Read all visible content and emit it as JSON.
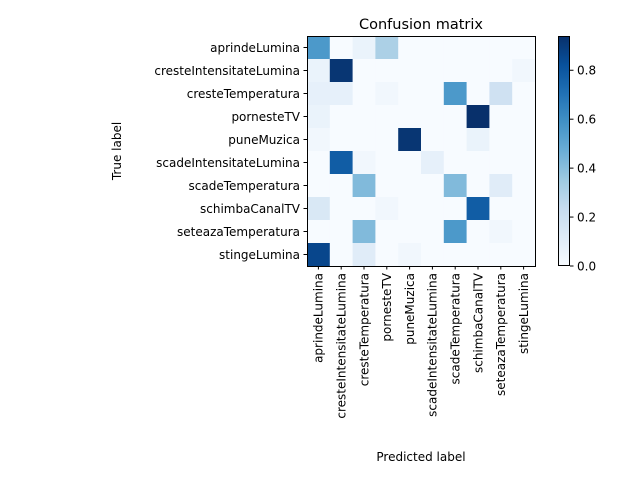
{
  "chart_data": {
    "type": "heatmap",
    "title": "Confusion matrix",
    "xlabel": "Predicted label",
    "ylabel": "True label",
    "row_labels": [
      "aprindeLumina",
      "cresteIntensitateLumina",
      "cresteTemperatura",
      "pornesteTV",
      "puneMuzica",
      "scadeIntensitateLumina",
      "scadeTemperatura",
      "schimbaCanalTV",
      "seteazaTemperatura",
      "stingeLumina"
    ],
    "col_labels": [
      "aprindeLumina",
      "cresteIntensitateLumina",
      "cresteTemperatura",
      "pornesteTV",
      "puneMuzica",
      "scadeIntensitateLumina",
      "scadeTemperatura",
      "schimbaCanalTV",
      "seteazaTemperatura",
      "stingeLumina"
    ],
    "matrix": [
      [
        0.56,
        0.0,
        0.06,
        0.31,
        0.0,
        0.0,
        0.0,
        0.0,
        0.0,
        0.0
      ],
      [
        0.06,
        0.92,
        0.0,
        0.0,
        0.0,
        0.0,
        0.0,
        0.0,
        0.0,
        0.03
      ],
      [
        0.08,
        0.08,
        0.0,
        0.03,
        0.0,
        0.0,
        0.56,
        0.0,
        0.19,
        0.0
      ],
      [
        0.06,
        0.0,
        0.0,
        0.0,
        0.0,
        0.0,
        0.0,
        0.94,
        0.0,
        0.0
      ],
      [
        0.03,
        0.0,
        0.0,
        0.0,
        0.92,
        0.0,
        0.0,
        0.06,
        0.0,
        0.0
      ],
      [
        0.0,
        0.78,
        0.03,
        0.0,
        0.0,
        0.08,
        0.0,
        0.0,
        0.0,
        0.0
      ],
      [
        0.0,
        0.0,
        0.42,
        0.0,
        0.0,
        0.0,
        0.42,
        0.0,
        0.11,
        0.0
      ],
      [
        0.14,
        0.0,
        0.0,
        0.03,
        0.0,
        0.0,
        0.0,
        0.78,
        0.0,
        0.0
      ],
      [
        0.0,
        0.0,
        0.42,
        0.0,
        0.0,
        0.0,
        0.56,
        0.0,
        0.03,
        0.0
      ],
      [
        0.86,
        0.0,
        0.11,
        0.0,
        0.03,
        0.0,
        0.0,
        0.0,
        0.0,
        0.0
      ]
    ],
    "colormap": "Blues",
    "colorbar": {
      "min": 0.0,
      "max": 0.94,
      "ticks": [
        0.0,
        0.2,
        0.4,
        0.6,
        0.8
      ],
      "tick_labels": [
        "0.0",
        "0.2",
        "0.4",
        "0.6",
        "0.8"
      ]
    },
    "grid": false,
    "colors": {
      "low": "#f7fbff",
      "high": "#08306b",
      "text": "#000000"
    }
  }
}
